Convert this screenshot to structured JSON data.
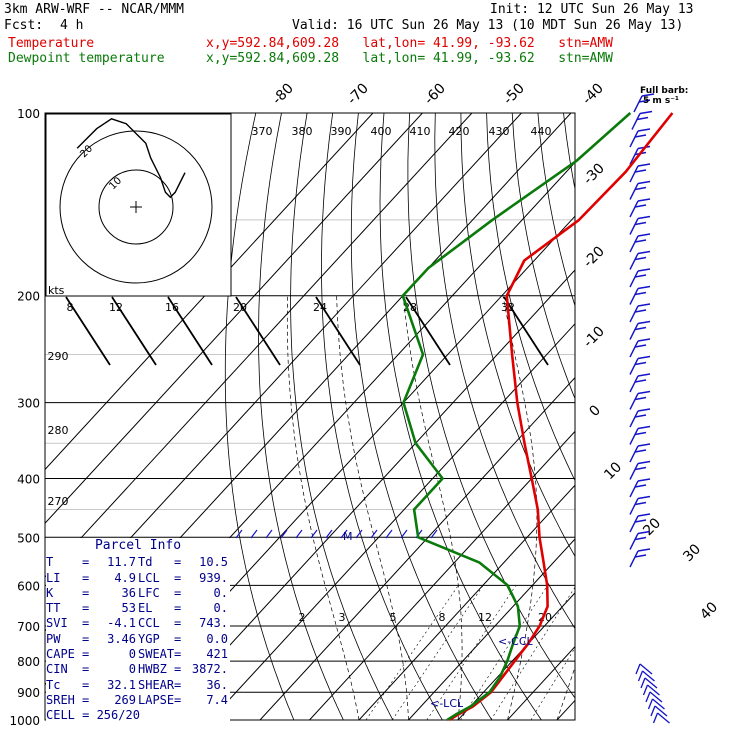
{
  "header": {
    "model": "3km ARW-WRF -- NCAR/MMM",
    "init": "Init: 12 UTC Sun 26 May 13",
    "fcst_label": "Fcst:",
    "fcst_value": "4 h",
    "valid": "Valid: 16 UTC Sun 26 May 13 (10 MDT Sun 26 May 13)",
    "temperature_label": "Temperature",
    "dewpoint_label": "Dewpoint temperature",
    "location": "x,y=592.84,609.28   lat,lon= 41.99, -93.62   stn=AMW",
    "location2": "x,y=592.84,609.28   lat,lon= 41.99, -93.62   stn=AMW"
  },
  "barb_legend": {
    "line1": "Full barb:",
    "line2": "5 m s⁻¹"
  },
  "colors": {
    "temperature": "#e00000",
    "dewpoint": "#0a7a0a",
    "info": "#00008b",
    "barbs": "#1414c8"
  },
  "parcel_info": {
    "title": "Parcel Info",
    "rows": [
      [
        {
          "k": "T",
          "v": "11.7"
        },
        {
          "k": "Td",
          "v": "10.5"
        }
      ],
      [
        {
          "k": "LI",
          "v": "4.9"
        },
        {
          "k": "LCL",
          "v": "939."
        }
      ],
      [
        {
          "k": "K",
          "v": "36"
        },
        {
          "k": "LFC",
          "v": "0."
        }
      ],
      [
        {
          "k": "TT",
          "v": "53"
        },
        {
          "k": "EL",
          "v": "0."
        }
      ],
      [
        {
          "k": "SVI",
          "v": "-4.1"
        },
        {
          "k": "CCL",
          "v": "743."
        }
      ],
      [
        {
          "k": "PW",
          "v": "3.46"
        },
        {
          "k": "YGP",
          "v": "0.0"
        }
      ],
      [
        {
          "k": "CAPE",
          "v": "0"
        },
        {
          "k": "SWEAT",
          "v": "421"
        }
      ],
      [
        {
          "k": "CIN",
          "v": "0"
        },
        {
          "k": "HWBZ",
          "v": "3872."
        }
      ],
      [
        {
          "k": "Tc",
          "v": "32.1"
        },
        {
          "k": "SHEAR",
          "v": "36."
        }
      ],
      [
        {
          "k": "SREH",
          "v": "269"
        },
        {
          "k": "LAPSE",
          "v": "7.4"
        }
      ]
    ],
    "cell": "CELL = 256/20"
  },
  "annotations": {
    "ccl": "<-CCL",
    "lcl": "<-LCL",
    "storm_marker": "M"
  },
  "chart_data": {
    "type": "line",
    "chart_kind": "Skew-T log-P sounding",
    "pressure_axis": {
      "scale": "log",
      "range_hPa": [
        1000,
        100
      ],
      "tick_labels": [
        "100",
        "200",
        "300",
        "400",
        "500",
        "600",
        "700",
        "800",
        "900",
        "1000"
      ]
    },
    "isotherm_labels": [
      "-80",
      "-70",
      "-60",
      "-50",
      "-40",
      "-30",
      "-20",
      "-10",
      "0",
      "10",
      "20",
      "30",
      "40"
    ],
    "theta_labels": [
      "370",
      "380",
      "390",
      "400",
      "410",
      "420",
      "430",
      "440"
    ],
    "theta_lower_labels": [
      "290",
      "280",
      "270"
    ],
    "mixing_ratio_labels": [
      "2",
      "3",
      "5",
      "8",
      "12",
      "20"
    ],
    "hodograph": {
      "units_label": "kts",
      "speed_labels": [
        "8",
        "12",
        "16",
        "20",
        "24",
        "28",
        "32"
      ],
      "ring_labels": [
        "20",
        "10"
      ],
      "trace": [
        [
          -12,
          12
        ],
        [
          -10,
          14
        ],
        [
          -8,
          16
        ],
        [
          -5,
          18
        ],
        [
          -2,
          17
        ],
        [
          0,
          15
        ],
        [
          2,
          13
        ],
        [
          3,
          10
        ],
        [
          5,
          6
        ],
        [
          6,
          3
        ],
        [
          7,
          2
        ],
        [
          8,
          3
        ],
        [
          9,
          5
        ],
        [
          10,
          7
        ]
      ]
    },
    "series": [
      {
        "name": "Temperature",
        "color": "#e00000",
        "points": [
          [
            100,
            -59.5
          ],
          [
            125,
            -58
          ],
          [
            150,
            -58.5
          ],
          [
            175,
            -62
          ],
          [
            200,
            -59
          ],
          [
            250,
            -47
          ],
          [
            300,
            -37
          ],
          [
            350,
            -28
          ],
          [
            400,
            -20
          ],
          [
            450,
            -13
          ],
          [
            500,
            -7.5
          ],
          [
            550,
            -2
          ],
          [
            600,
            3
          ],
          [
            650,
            7
          ],
          [
            700,
            9
          ],
          [
            750,
            10
          ],
          [
            800,
            10.5
          ],
          [
            850,
            11
          ],
          [
            900,
            11.5
          ],
          [
            950,
            10.5
          ],
          [
            980,
            9
          ],
          [
            1000,
            8.2
          ]
        ]
      },
      {
        "name": "Dewpoint temperature",
        "color": "#0a7a0a",
        "points": [
          [
            100,
            -68
          ],
          [
            120,
            -70
          ],
          [
            150,
            -76
          ],
          [
            180,
            -80
          ],
          [
            200,
            -80
          ],
          [
            250,
            -65
          ],
          [
            300,
            -60
          ],
          [
            350,
            -50
          ],
          [
            400,
            -38
          ],
          [
            450,
            -38
          ],
          [
            500,
            -32
          ],
          [
            550,
            -15
          ],
          [
            600,
            -5
          ],
          [
            650,
            1
          ],
          [
            700,
            5
          ],
          [
            750,
            7
          ],
          [
            800,
            9
          ],
          [
            850,
            10.5
          ],
          [
            900,
            11.2
          ],
          [
            950,
            10
          ],
          [
            980,
            8.5
          ],
          [
            1000,
            7.8
          ]
        ]
      }
    ],
    "grid": true,
    "legend": "top-left"
  }
}
